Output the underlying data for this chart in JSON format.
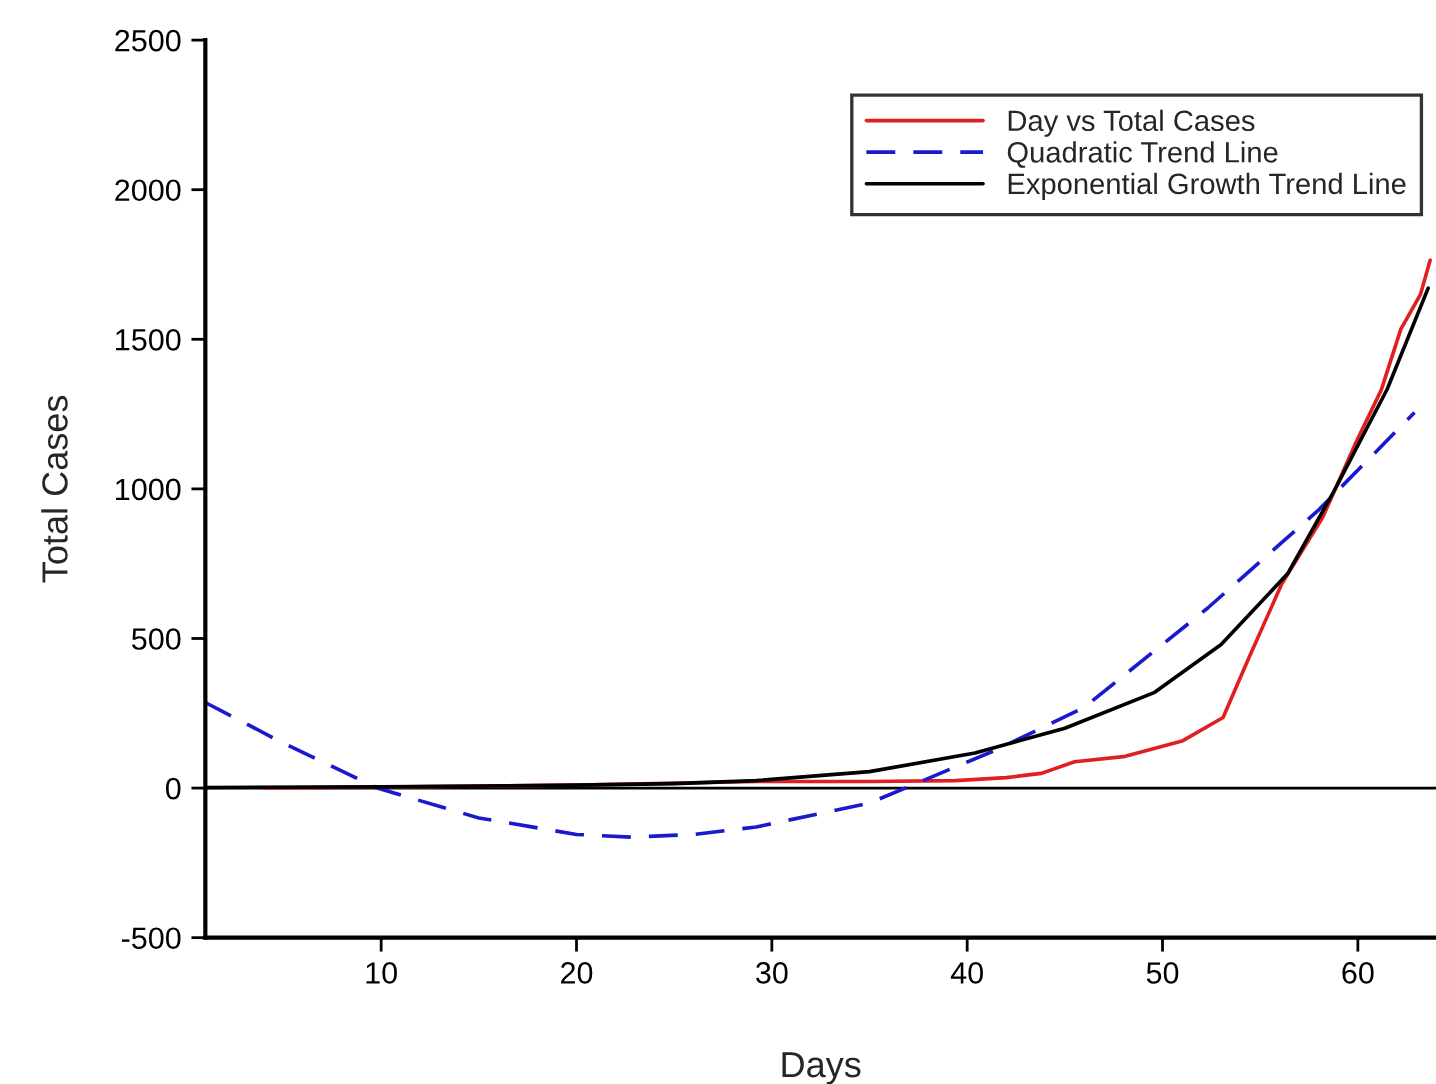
{
  "chart_data": {
    "type": "line",
    "xlabel": "Days",
    "ylabel": "Total Cases",
    "xlim": [
      1,
      64
    ],
    "xticks": [
      10,
      20,
      30,
      40,
      50,
      60
    ],
    "ylim": [
      -500,
      2500
    ],
    "yticks": [
      -500,
      0,
      500,
      1000,
      1500,
      2000,
      2500
    ],
    "grid": false,
    "legend": "top right",
    "marker": "none",
    "ref_lines": [
      {
        "axis": "y",
        "value": 0,
        "color": "#000000"
      }
    ],
    "series": [
      {
        "name": "Day vs Total Cases",
        "color": "#e02020",
        "line_style": "solid",
        "x": [
          4,
          10,
          20,
          29.2,
          35,
          39.4,
          42,
          43.8,
          45.5,
          48,
          51,
          53.1,
          54.4,
          56.1,
          58.2,
          59.9,
          61.2,
          62.2,
          63.2,
          63.7
        ],
        "values": [
          0,
          3,
          10,
          22,
          22,
          25,
          35,
          49,
          88,
          105,
          157,
          236,
          432,
          682,
          905,
          1155,
          1331,
          1534,
          1649,
          1764
        ]
      },
      {
        "name": "Quadratic Trend Line",
        "color": "#1a1acc",
        "line_style": "dashed",
        "x": [
          1,
          5,
          9.8,
          15,
          20,
          22.8,
          26,
          29.2,
          35,
          41.5,
          46,
          52.3,
          58,
          62.9
        ],
        "values": [
          286,
          150,
          0,
          -100,
          -155,
          -164,
          -155,
          -130,
          -50,
          128,
          270,
          601,
          930,
          1255
        ]
      },
      {
        "name": "Exponential Growth Trend Line",
        "color": "#000000",
        "line_style": "solid",
        "x": [
          1,
          10,
          20,
          25,
          29.2,
          35,
          40.4,
          45,
          49.6,
          53,
          56.4,
          58.8,
          61.5,
          63.6
        ],
        "values": [
          2,
          4,
          10,
          15,
          25,
          55,
          117,
          200,
          320,
          480,
          716,
          995,
          1333,
          1671
        ]
      }
    ]
  }
}
